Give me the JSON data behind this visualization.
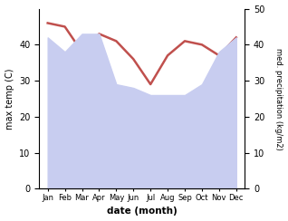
{
  "months": [
    "Jan",
    "Feb",
    "Mar",
    "Apr",
    "May",
    "Jun",
    "Jul",
    "Aug",
    "Sep",
    "Oct",
    "Nov",
    "Dec"
  ],
  "month_x": [
    0,
    1,
    2,
    3,
    4,
    5,
    6,
    7,
    8,
    9,
    10,
    11
  ],
  "precipitation": [
    42,
    38,
    43,
    43,
    29,
    28,
    26,
    26,
    26,
    29,
    38,
    42
  ],
  "temperature": [
    46,
    45,
    38,
    43,
    41,
    36,
    29,
    37,
    41,
    40,
    37,
    42
  ],
  "precip_fill_color": "#c8cdf0",
  "temp_color": "#c0504d",
  "temp_linewidth": 1.8,
  "xlabel": "date (month)",
  "ylabel_left": "max temp (C)",
  "ylabel_right": "med. precipitation (kg/m2)",
  "ylim_left": [
    0,
    50
  ],
  "ylim_right": [
    0,
    50
  ],
  "yticks_left": [
    0,
    10,
    20,
    30,
    40
  ],
  "yticks_right": [
    0,
    10,
    20,
    30,
    40,
    50
  ],
  "background_color": "#ffffff",
  "fig_width": 3.18,
  "fig_height": 2.44,
  "dpi": 100
}
